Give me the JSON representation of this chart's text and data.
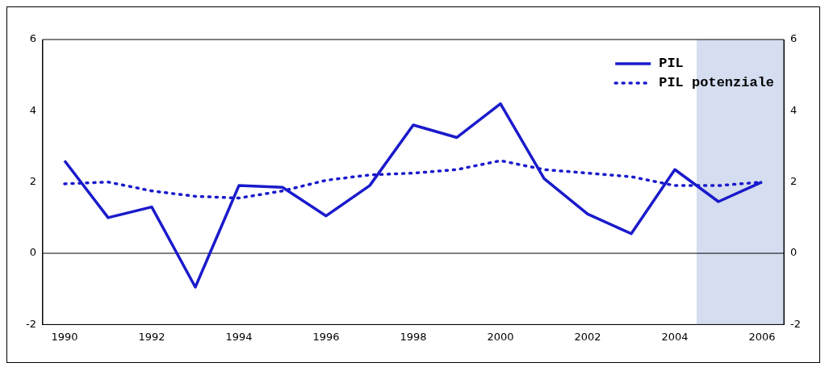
{
  "chart_data": {
    "type": "line",
    "x": [
      1990,
      1991,
      1992,
      1993,
      1994,
      1995,
      1996,
      1997,
      1998,
      1999,
      2000,
      2001,
      2002,
      2003,
      2004,
      2005,
      2006
    ],
    "series": [
      {
        "name": "PIL",
        "color": "#1a1acc",
        "line_style": "solid",
        "values": [
          2.6,
          1.0,
          1.3,
          -0.95,
          1.9,
          1.85,
          1.05,
          1.9,
          3.6,
          3.25,
          4.2,
          2.1,
          1.1,
          0.55,
          2.35,
          1.45,
          2.0
        ]
      },
      {
        "name": "PIL potenziale",
        "color": "#1a1acc",
        "line_style": "dotted",
        "values": [
          1.95,
          2.0,
          1.75,
          1.6,
          1.55,
          1.75,
          2.05,
          2.2,
          2.25,
          2.35,
          2.6,
          2.35,
          2.25,
          2.15,
          1.9,
          1.9,
          2.0
        ]
      }
    ],
    "xlim": [
      1989.5,
      2006.5
    ],
    "xticks": [
      1990,
      1992,
      1994,
      1996,
      1998,
      2000,
      2002,
      2004,
      2006
    ],
    "ylim": [
      -2,
      6
    ],
    "yticks": [
      -2,
      0,
      2,
      4,
      6
    ],
    "y2lim": [
      -2,
      6
    ],
    "y2ticks": [
      -2,
      0,
      2,
      4,
      6
    ],
    "ref_lines": [
      {
        "axis": "y",
        "value": 0,
        "color": "#000000"
      }
    ],
    "bands": [
      {
        "axis": "x",
        "from": 2004.5,
        "to": 2006.5,
        "color": "#d5ddf0"
      }
    ],
    "grid": false,
    "legend": "top right",
    "marker": "none"
  }
}
